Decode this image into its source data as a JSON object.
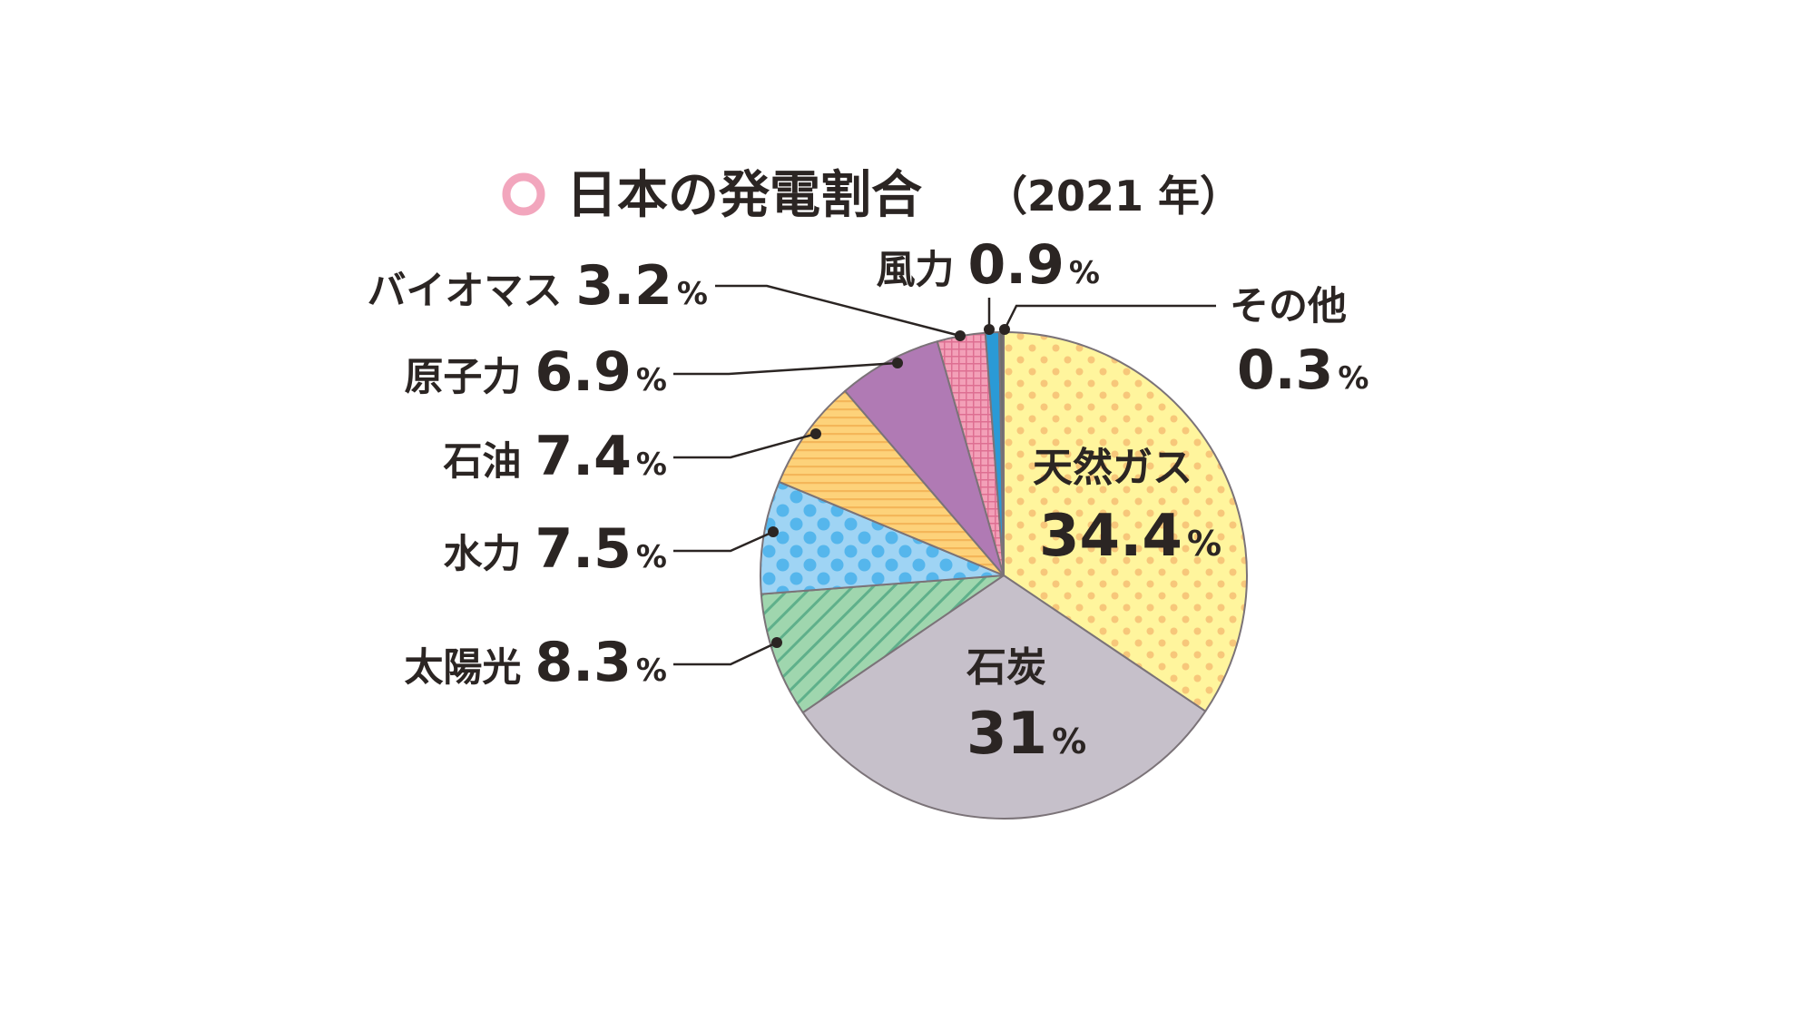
{
  "chart_data": {
    "type": "pie",
    "title": "日本の発電割合",
    "subtitle": "（2021 年）",
    "unit": "%",
    "slices": [
      {
        "label": "天然ガス",
        "value": 34.4,
        "value_text": "34.4",
        "color": "#fff59d"
      },
      {
        "label": "石炭",
        "value": 31,
        "value_text": "31",
        "color": "#c6c0ca"
      },
      {
        "label": "太陽光",
        "value": 8.3,
        "value_text": "8.3",
        "color": "#9fd6ae"
      },
      {
        "label": "水力",
        "value": 7.5,
        "value_text": "7.5",
        "color": "#9fd4f4"
      },
      {
        "label": "石油",
        "value": 7.4,
        "value_text": "7.4",
        "color": "#fdd27a"
      },
      {
        "label": "原子力",
        "value": 6.9,
        "value_text": "6.9",
        "color": "#b07ab4"
      },
      {
        "label": "バイオマス",
        "value": 3.2,
        "value_text": "3.2",
        "color": "#f3a0b8"
      },
      {
        "label": "風力",
        "value": 0.9,
        "value_text": "0.9",
        "color": "#2a9ad6"
      },
      {
        "label": "その他",
        "value": 0.3,
        "value_text": "0.3",
        "color": "#6d6d6d"
      }
    ],
    "accent_color": "#f2a6bd"
  }
}
